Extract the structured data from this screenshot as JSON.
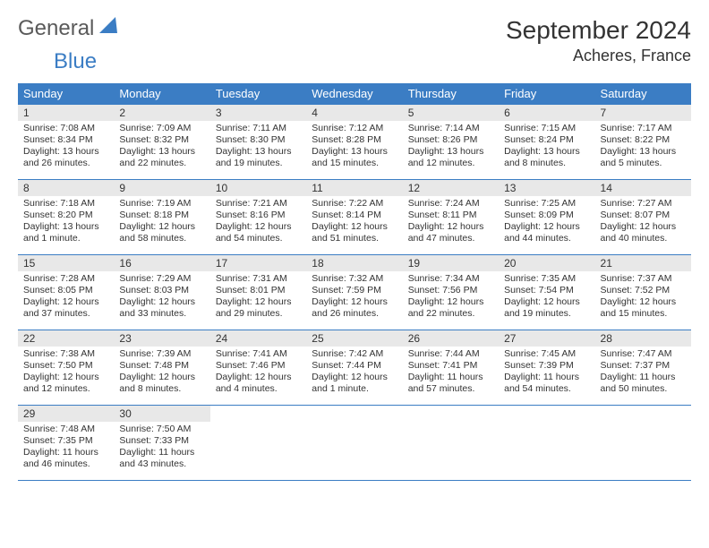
{
  "logo": {
    "general": "General",
    "blue": "Blue"
  },
  "header": {
    "title": "September 2024",
    "location": "Acheres, France"
  },
  "colors": {
    "header_bg": "#3b7dc4",
    "header_text": "#ffffff",
    "daynum_bg": "#e8e8e8",
    "border": "#3b7dc4",
    "text": "#333333",
    "logo_gray": "#5a5a5a",
    "logo_blue": "#3b7dc4"
  },
  "dow": [
    "Sunday",
    "Monday",
    "Tuesday",
    "Wednesday",
    "Thursday",
    "Friday",
    "Saturday"
  ],
  "days": [
    {
      "n": "1",
      "sr": "Sunrise: 7:08 AM",
      "ss": "Sunset: 8:34 PM",
      "dl": "Daylight: 13 hours and 26 minutes."
    },
    {
      "n": "2",
      "sr": "Sunrise: 7:09 AM",
      "ss": "Sunset: 8:32 PM",
      "dl": "Daylight: 13 hours and 22 minutes."
    },
    {
      "n": "3",
      "sr": "Sunrise: 7:11 AM",
      "ss": "Sunset: 8:30 PM",
      "dl": "Daylight: 13 hours and 19 minutes."
    },
    {
      "n": "4",
      "sr": "Sunrise: 7:12 AM",
      "ss": "Sunset: 8:28 PM",
      "dl": "Daylight: 13 hours and 15 minutes."
    },
    {
      "n": "5",
      "sr": "Sunrise: 7:14 AM",
      "ss": "Sunset: 8:26 PM",
      "dl": "Daylight: 13 hours and 12 minutes."
    },
    {
      "n": "6",
      "sr": "Sunrise: 7:15 AM",
      "ss": "Sunset: 8:24 PM",
      "dl": "Daylight: 13 hours and 8 minutes."
    },
    {
      "n": "7",
      "sr": "Sunrise: 7:17 AM",
      "ss": "Sunset: 8:22 PM",
      "dl": "Daylight: 13 hours and 5 minutes."
    },
    {
      "n": "8",
      "sr": "Sunrise: 7:18 AM",
      "ss": "Sunset: 8:20 PM",
      "dl": "Daylight: 13 hours and 1 minute."
    },
    {
      "n": "9",
      "sr": "Sunrise: 7:19 AM",
      "ss": "Sunset: 8:18 PM",
      "dl": "Daylight: 12 hours and 58 minutes."
    },
    {
      "n": "10",
      "sr": "Sunrise: 7:21 AM",
      "ss": "Sunset: 8:16 PM",
      "dl": "Daylight: 12 hours and 54 minutes."
    },
    {
      "n": "11",
      "sr": "Sunrise: 7:22 AM",
      "ss": "Sunset: 8:14 PM",
      "dl": "Daylight: 12 hours and 51 minutes."
    },
    {
      "n": "12",
      "sr": "Sunrise: 7:24 AM",
      "ss": "Sunset: 8:11 PM",
      "dl": "Daylight: 12 hours and 47 minutes."
    },
    {
      "n": "13",
      "sr": "Sunrise: 7:25 AM",
      "ss": "Sunset: 8:09 PM",
      "dl": "Daylight: 12 hours and 44 minutes."
    },
    {
      "n": "14",
      "sr": "Sunrise: 7:27 AM",
      "ss": "Sunset: 8:07 PM",
      "dl": "Daylight: 12 hours and 40 minutes."
    },
    {
      "n": "15",
      "sr": "Sunrise: 7:28 AM",
      "ss": "Sunset: 8:05 PM",
      "dl": "Daylight: 12 hours and 37 minutes."
    },
    {
      "n": "16",
      "sr": "Sunrise: 7:29 AM",
      "ss": "Sunset: 8:03 PM",
      "dl": "Daylight: 12 hours and 33 minutes."
    },
    {
      "n": "17",
      "sr": "Sunrise: 7:31 AM",
      "ss": "Sunset: 8:01 PM",
      "dl": "Daylight: 12 hours and 29 minutes."
    },
    {
      "n": "18",
      "sr": "Sunrise: 7:32 AM",
      "ss": "Sunset: 7:59 PM",
      "dl": "Daylight: 12 hours and 26 minutes."
    },
    {
      "n": "19",
      "sr": "Sunrise: 7:34 AM",
      "ss": "Sunset: 7:56 PM",
      "dl": "Daylight: 12 hours and 22 minutes."
    },
    {
      "n": "20",
      "sr": "Sunrise: 7:35 AM",
      "ss": "Sunset: 7:54 PM",
      "dl": "Daylight: 12 hours and 19 minutes."
    },
    {
      "n": "21",
      "sr": "Sunrise: 7:37 AM",
      "ss": "Sunset: 7:52 PM",
      "dl": "Daylight: 12 hours and 15 minutes."
    },
    {
      "n": "22",
      "sr": "Sunrise: 7:38 AM",
      "ss": "Sunset: 7:50 PM",
      "dl": "Daylight: 12 hours and 12 minutes."
    },
    {
      "n": "23",
      "sr": "Sunrise: 7:39 AM",
      "ss": "Sunset: 7:48 PM",
      "dl": "Daylight: 12 hours and 8 minutes."
    },
    {
      "n": "24",
      "sr": "Sunrise: 7:41 AM",
      "ss": "Sunset: 7:46 PM",
      "dl": "Daylight: 12 hours and 4 minutes."
    },
    {
      "n": "25",
      "sr": "Sunrise: 7:42 AM",
      "ss": "Sunset: 7:44 PM",
      "dl": "Daylight: 12 hours and 1 minute."
    },
    {
      "n": "26",
      "sr": "Sunrise: 7:44 AM",
      "ss": "Sunset: 7:41 PM",
      "dl": "Daylight: 11 hours and 57 minutes."
    },
    {
      "n": "27",
      "sr": "Sunrise: 7:45 AM",
      "ss": "Sunset: 7:39 PM",
      "dl": "Daylight: 11 hours and 54 minutes."
    },
    {
      "n": "28",
      "sr": "Sunrise: 7:47 AM",
      "ss": "Sunset: 7:37 PM",
      "dl": "Daylight: 11 hours and 50 minutes."
    },
    {
      "n": "29",
      "sr": "Sunrise: 7:48 AM",
      "ss": "Sunset: 7:35 PM",
      "dl": "Daylight: 11 hours and 46 minutes."
    },
    {
      "n": "30",
      "sr": "Sunrise: 7:50 AM",
      "ss": "Sunset: 7:33 PM",
      "dl": "Daylight: 11 hours and 43 minutes."
    }
  ],
  "layout": {
    "first_day_offset": 0,
    "trailing_empty": 5
  }
}
